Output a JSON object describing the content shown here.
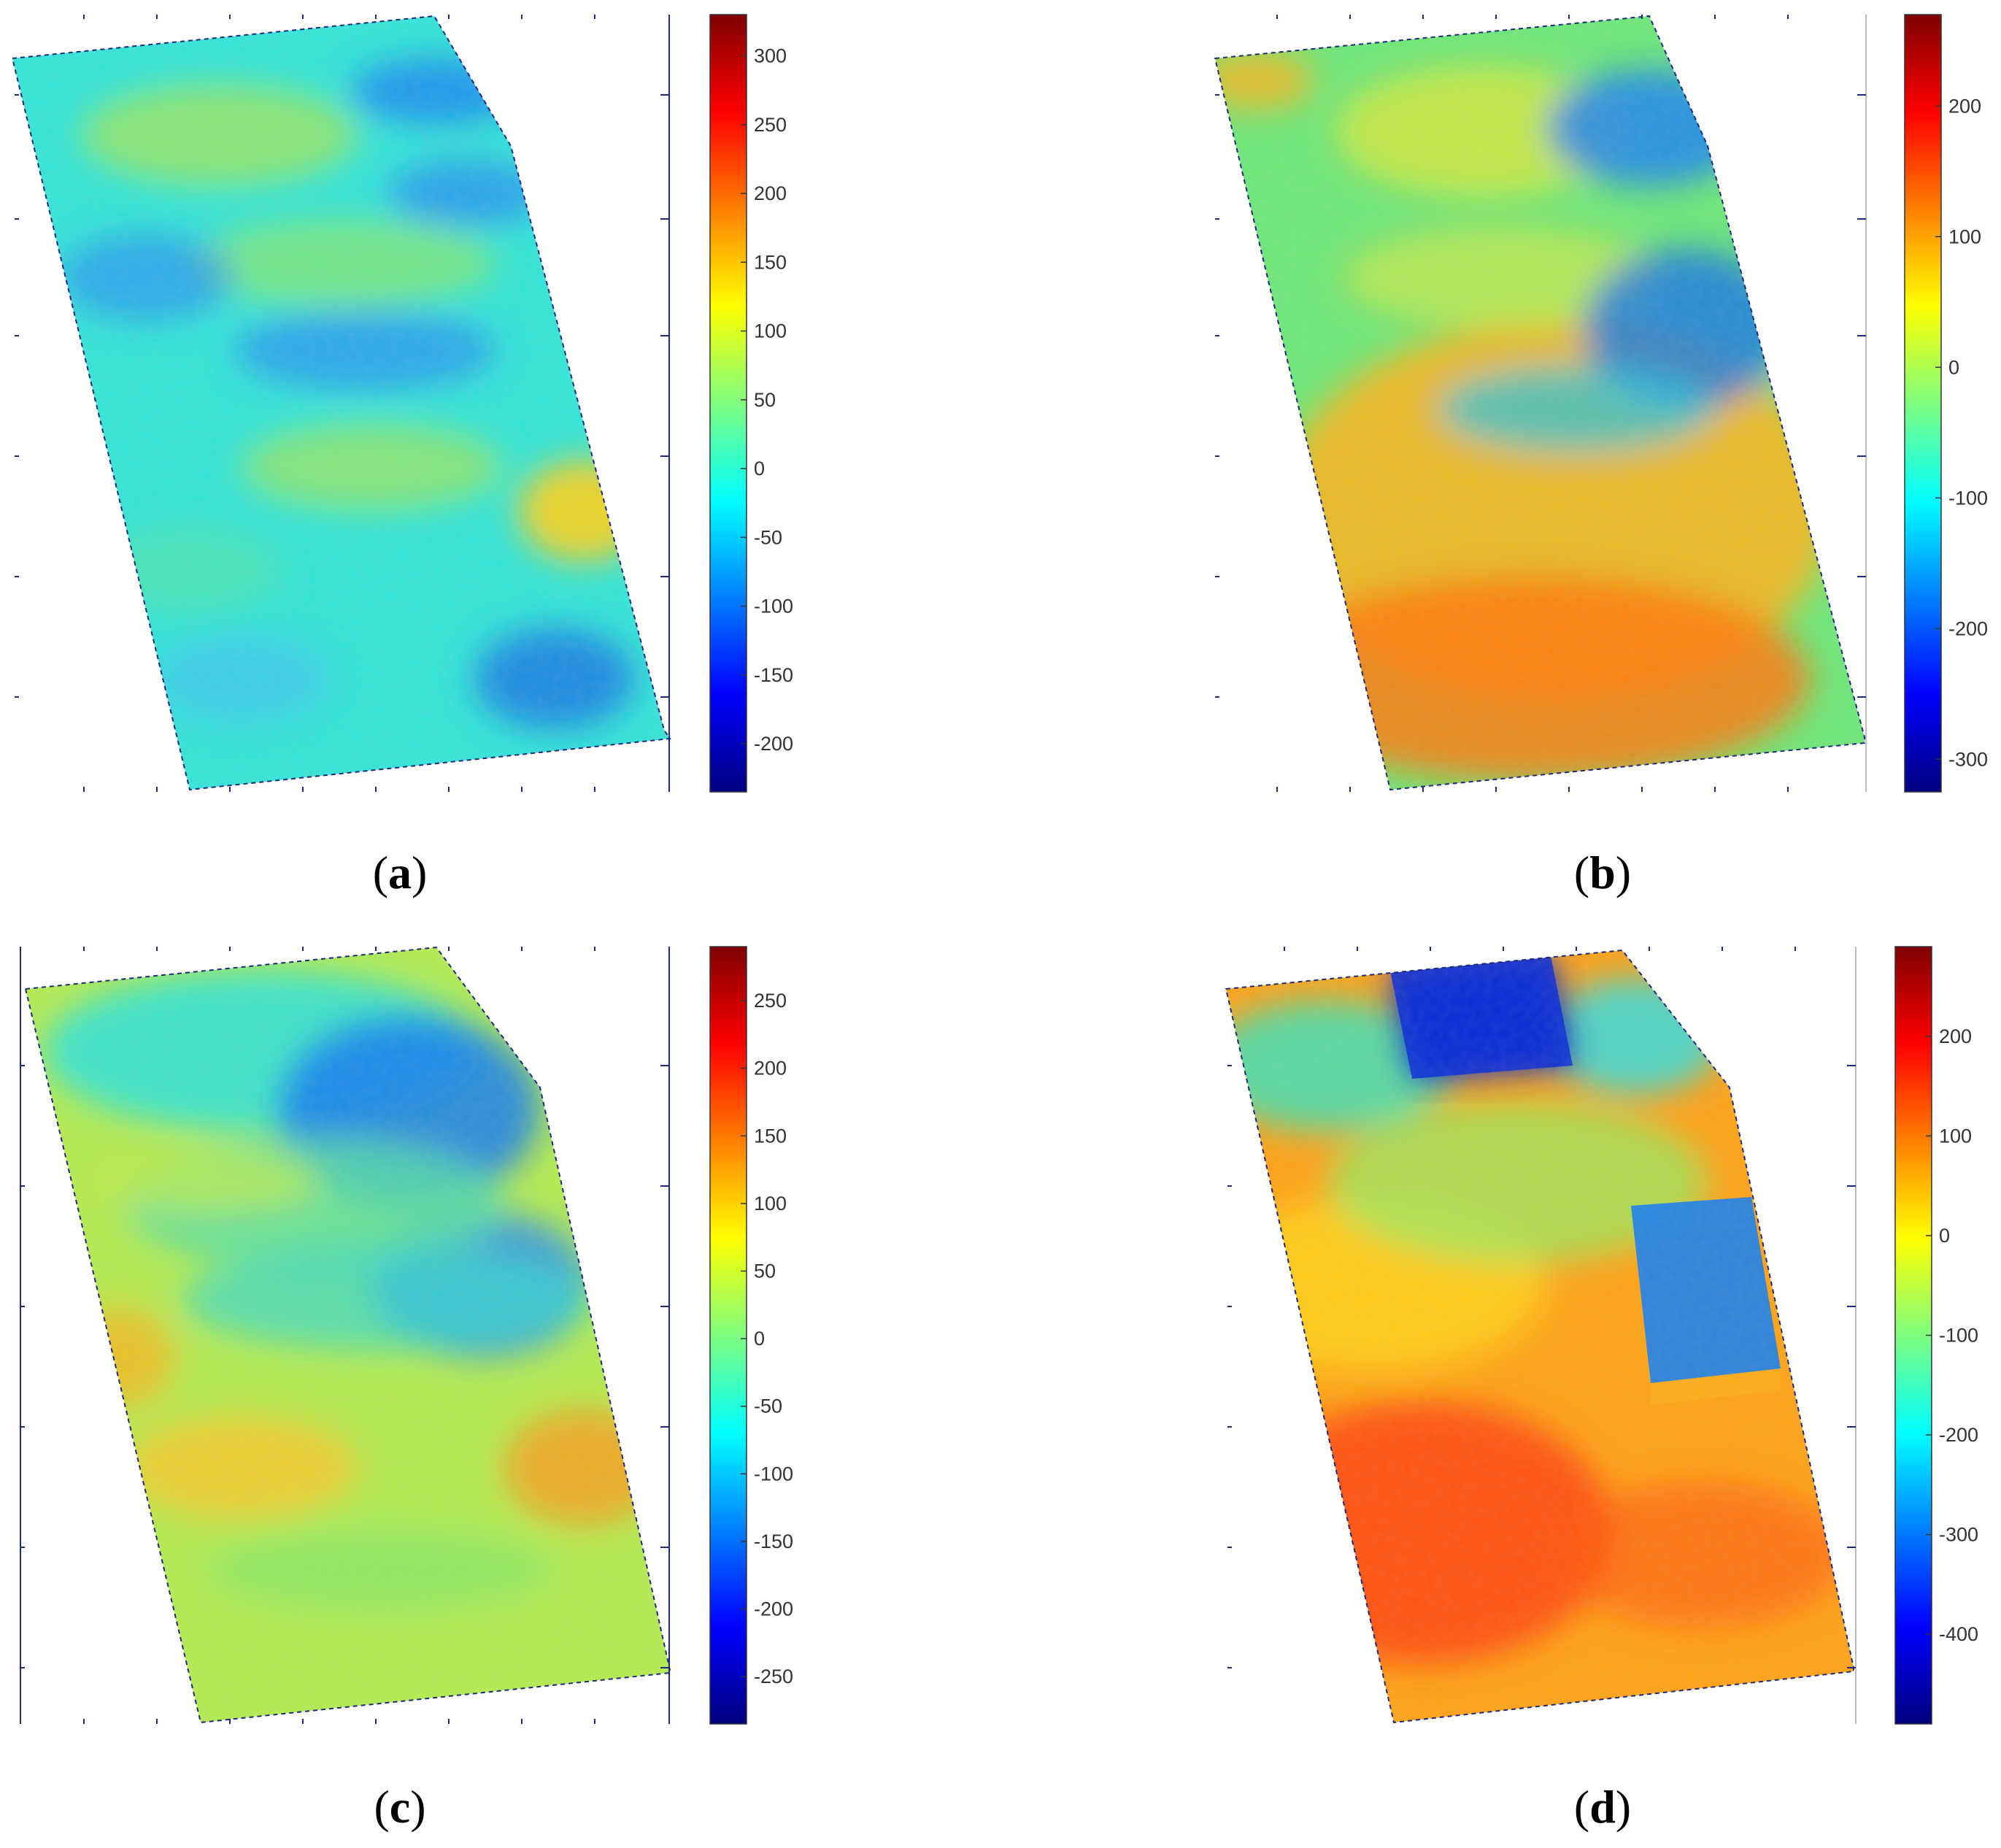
{
  "colors": {
    "jet": [
      "#00007f",
      "#0000ff",
      "#007fff",
      "#00ffff",
      "#7fff7f",
      "#ffff00",
      "#ff7f00",
      "#ff0000",
      "#7f0000"
    ],
    "axis": "#1f2a7a"
  },
  "chart_data": [
    {
      "type": "heatmap",
      "panel_label": "a",
      "colorbar": {
        "ticks": [
          300,
          250,
          200,
          150,
          100,
          50,
          0,
          -50,
          -100,
          -150,
          -200
        ],
        "range": [
          -235,
          330
        ]
      },
      "color_fields": [
        {
          "level": 0,
          "blobs": []
        }
      ]
    },
    {
      "type": "heatmap",
      "panel_label": "b",
      "colorbar": {
        "ticks": [
          200,
          100,
          0,
          -100,
          -200,
          -300
        ],
        "range": [
          -325,
          270
        ]
      },
      "color_fields": []
    },
    {
      "type": "heatmap",
      "panel_label": "c",
      "colorbar": {
        "ticks": [
          250,
          200,
          150,
          100,
          50,
          0,
          -50,
          -100,
          -150,
          -200,
          -250
        ],
        "range": [
          -285,
          290
        ]
      },
      "color_fields": []
    },
    {
      "type": "heatmap",
      "panel_label": "d",
      "colorbar": {
        "ticks": [
          200,
          100,
          0,
          -100,
          -200,
          -300,
          -400
        ],
        "range": [
          -490,
          290
        ]
      },
      "color_fields": []
    }
  ]
}
